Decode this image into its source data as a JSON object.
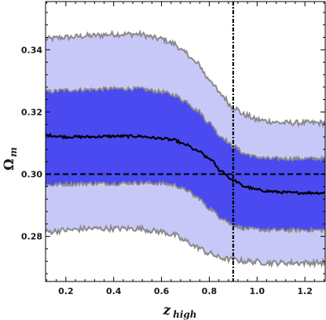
{
  "chart_data": {
    "type": "area",
    "xlabel_main": "z",
    "xlabel_sub": "high",
    "ylabel_main": "Ω",
    "ylabel_sub": "m",
    "xlim": [
      0.115,
      1.285
    ],
    "ylim": [
      0.2655,
      0.3555
    ],
    "x_ticks": [
      0.2,
      0.4,
      0.6,
      0.8,
      1.0,
      1.2
    ],
    "x_tick_labels": [
      "0.2",
      "0.4",
      "0.6",
      "0.8",
      "1.0",
      "1.2"
    ],
    "y_ticks": [
      0.28,
      0.3,
      0.32,
      0.34
    ],
    "y_tick_labels": [
      "0.28",
      "0.30",
      "0.32",
      "0.34"
    ],
    "grid": false,
    "reference_lines": {
      "horizontal_y": 0.3,
      "vertical_x": 0.9
    },
    "x": [
      0.12,
      0.2,
      0.3,
      0.4,
      0.5,
      0.6,
      0.65,
      0.7,
      0.75,
      0.8,
      0.85,
      0.9,
      0.95,
      1.0,
      1.05,
      1.1,
      1.15,
      1.2,
      1.28
    ],
    "series": [
      {
        "role": "outer-band-upper",
        "values": [
          0.3435,
          0.344,
          0.3445,
          0.345,
          0.345,
          0.3435,
          0.342,
          0.339,
          0.3355,
          0.3305,
          0.3255,
          0.3215,
          0.319,
          0.3175,
          0.317,
          0.3165,
          0.3165,
          0.3165,
          0.3165
        ]
      },
      {
        "role": "inner-band-upper",
        "values": [
          0.3265,
          0.327,
          0.3272,
          0.3275,
          0.3275,
          0.3265,
          0.3255,
          0.3235,
          0.3205,
          0.3165,
          0.312,
          0.309,
          0.3065,
          0.3055,
          0.305,
          0.305,
          0.305,
          0.305,
          0.305
        ]
      },
      {
        "role": "median",
        "values": [
          0.3125,
          0.312,
          0.312,
          0.3122,
          0.3122,
          0.3115,
          0.311,
          0.3095,
          0.3075,
          0.305,
          0.301,
          0.298,
          0.296,
          0.295,
          0.2945,
          0.2942,
          0.294,
          0.294,
          0.294
        ]
      },
      {
        "role": "inner-band-lower",
        "values": [
          0.2965,
          0.2968,
          0.297,
          0.297,
          0.2972,
          0.297,
          0.2965,
          0.295,
          0.2925,
          0.289,
          0.286,
          0.2835,
          0.2825,
          0.2822,
          0.282,
          0.282,
          0.282,
          0.282,
          0.282
        ]
      },
      {
        "role": "outer-band-lower",
        "values": [
          0.2815,
          0.282,
          0.2825,
          0.2825,
          0.2825,
          0.2815,
          0.2805,
          0.2785,
          0.2765,
          0.2745,
          0.273,
          0.2725,
          0.272,
          0.2718,
          0.2715,
          0.2715,
          0.2715,
          0.2715,
          0.2715
        ]
      }
    ],
    "colors": {
      "outer_band": "#c8c8f8",
      "inner_band": "#4a4af0",
      "band_edge": "#8a8a8a",
      "median": "#000000",
      "reference": "#000000",
      "frame": "#000000"
    }
  }
}
